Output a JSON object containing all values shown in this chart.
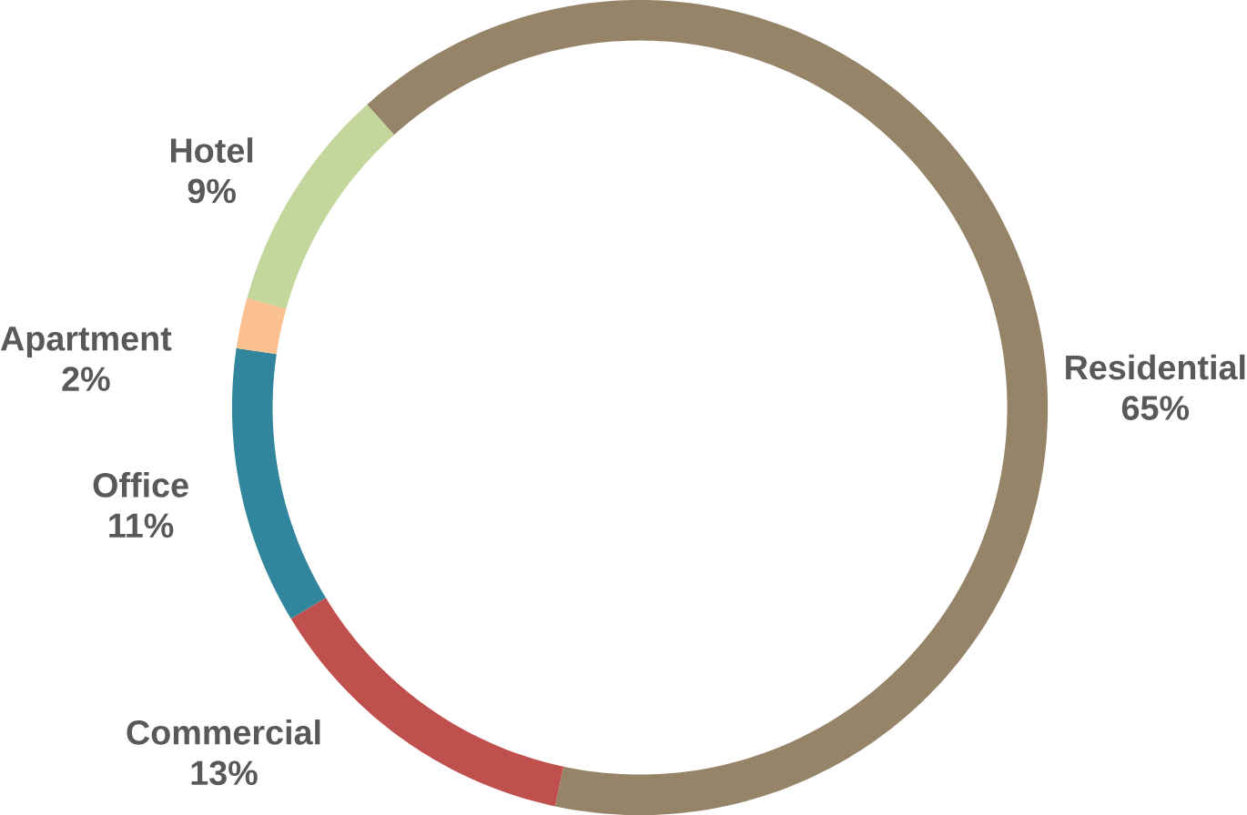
{
  "chart_data": {
    "type": "donut",
    "categories": [
      "Residential",
      "Commercial",
      "Office",
      "Apartment",
      "Hotel"
    ],
    "values": [
      65,
      13,
      11,
      2,
      9
    ],
    "colors": [
      "#968469",
      "#c0504d",
      "#31859c",
      "#fac090",
      "#c3d69b"
    ],
    "value_labels": [
      "65%",
      "13%",
      "11%",
      "2%",
      "9%"
    ]
  }
}
